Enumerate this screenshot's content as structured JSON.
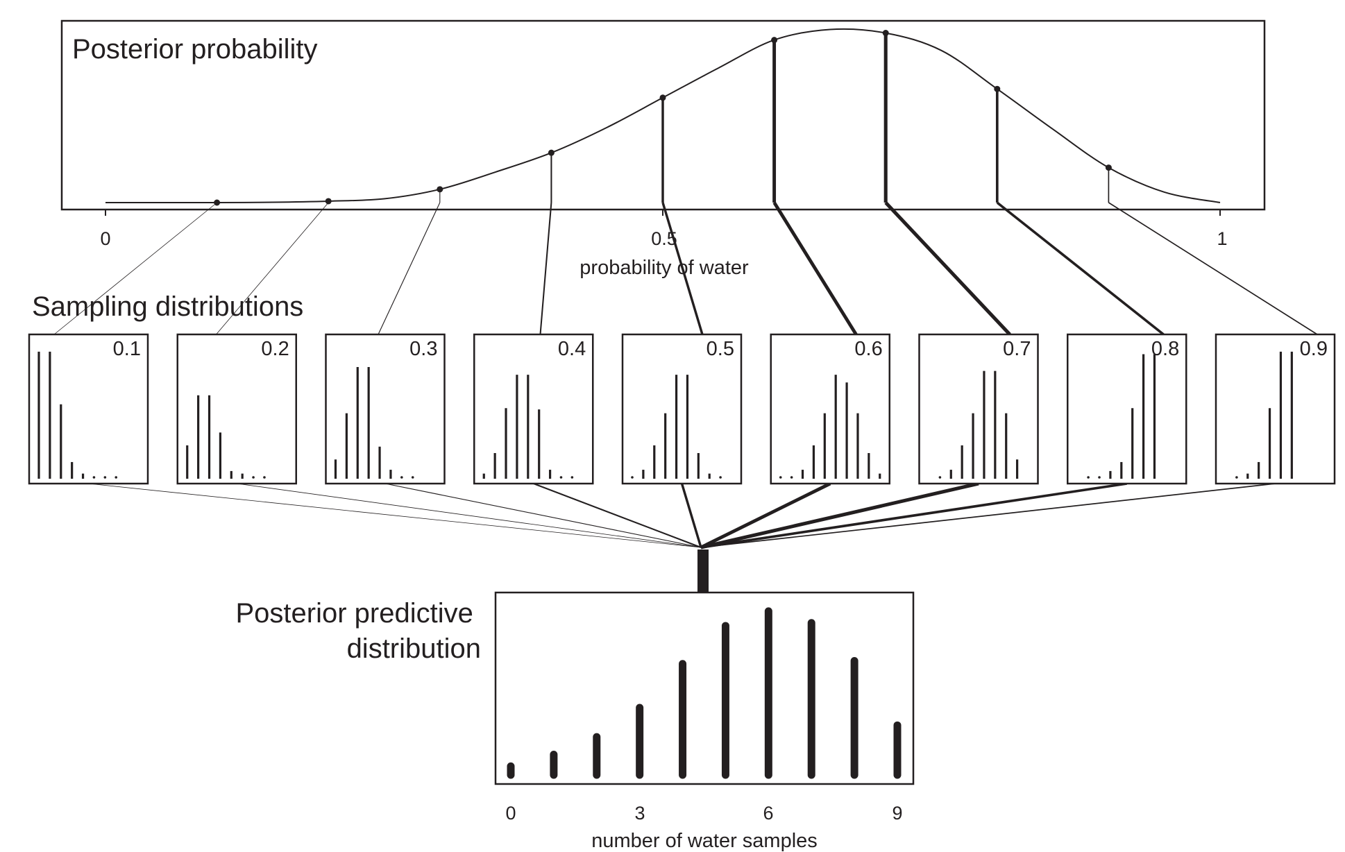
{
  "chart_data": [
    {
      "type": "line",
      "title": "Posterior probability",
      "xlabel": "probability of water",
      "xlim": [
        0,
        1
      ],
      "xticks": [
        "0",
        "0.5",
        "1"
      ],
      "curve": {
        "x": [
          0.0,
          0.05,
          0.1,
          0.15,
          0.2,
          0.25,
          0.3,
          0.35,
          0.4,
          0.45,
          0.5,
          0.55,
          0.6,
          0.65,
          0.7,
          0.75,
          0.8,
          0.85,
          0.9,
          0.95,
          1.0
        ],
        "y": [
          0.0,
          0.0,
          0.0,
          0.002,
          0.008,
          0.022,
          0.076,
          0.175,
          0.285,
          0.43,
          0.6,
          0.77,
          0.93,
          0.99,
          0.97,
          0.87,
          0.65,
          0.42,
          0.2,
          0.06,
          0.0
        ]
      },
      "points": {
        "x": [
          0.1,
          0.2,
          0.3,
          0.4,
          0.5,
          0.6,
          0.7,
          0.8,
          0.9
        ],
        "y": [
          0.0,
          0.008,
          0.076,
          0.285,
          0.6,
          0.93,
          0.97,
          0.65,
          0.2
        ]
      }
    },
    {
      "type": "bar",
      "title": "Sampling distributions",
      "categories": [
        "0",
        "1",
        "2",
        "3",
        "4",
        "5",
        "6",
        "7",
        "8",
        "9"
      ],
      "series": [
        {
          "name": "0.1",
          "values": [
            0.99,
            0.99,
            0.58,
            0.13,
            0.04,
            0.02,
            0.02,
            0.02,
            0,
            0
          ]
        },
        {
          "name": "0.2",
          "values": [
            0.26,
            0.65,
            0.65,
            0.36,
            0.06,
            0.04,
            0.02,
            0.01,
            0,
            0
          ]
        },
        {
          "name": "0.3",
          "values": [
            0.15,
            0.51,
            0.87,
            0.87,
            0.25,
            0.07,
            0.02,
            0.02,
            0,
            0
          ]
        },
        {
          "name": "0.4",
          "values": [
            0.04,
            0.2,
            0.55,
            0.81,
            0.81,
            0.54,
            0.07,
            0.02,
            0.02,
            0
          ]
        },
        {
          "name": "0.5",
          "values": [
            0.02,
            0.07,
            0.26,
            0.51,
            0.81,
            0.81,
            0.2,
            0.04,
            0.02,
            0
          ]
        },
        {
          "name": "0.6",
          "values": [
            0.02,
            0.02,
            0.07,
            0.26,
            0.51,
            0.81,
            0.75,
            0.51,
            0.2,
            0.04
          ]
        },
        {
          "name": "0.7",
          "values": [
            0,
            0.02,
            0.07,
            0.26,
            0.51,
            0.84,
            0.84,
            0.51,
            0.15,
            0
          ]
        },
        {
          "name": "0.8",
          "values": [
            0,
            0.02,
            0.02,
            0.06,
            0.13,
            0.55,
            0.97,
            0.97,
            0,
            0
          ]
        },
        {
          "name": "0.9",
          "values": [
            0,
            0.02,
            0.04,
            0.13,
            0.55,
            0.99,
            0.99,
            0,
            0,
            0
          ]
        }
      ]
    },
    {
      "type": "bar",
      "title": "Posterior predictive distribution",
      "xlabel": "number of water samples",
      "categories": [
        "0",
        "1",
        "2",
        "3",
        "4",
        "5",
        "6",
        "7",
        "8",
        "9"
      ],
      "xticks": [
        "0",
        "3",
        "6",
        "9"
      ],
      "values": [
        0.03,
        0.07,
        0.13,
        0.23,
        0.38,
        0.51,
        0.56,
        0.52,
        0.39,
        0.17
      ],
      "ylim": [
        0,
        0.6
      ]
    }
  ]
}
